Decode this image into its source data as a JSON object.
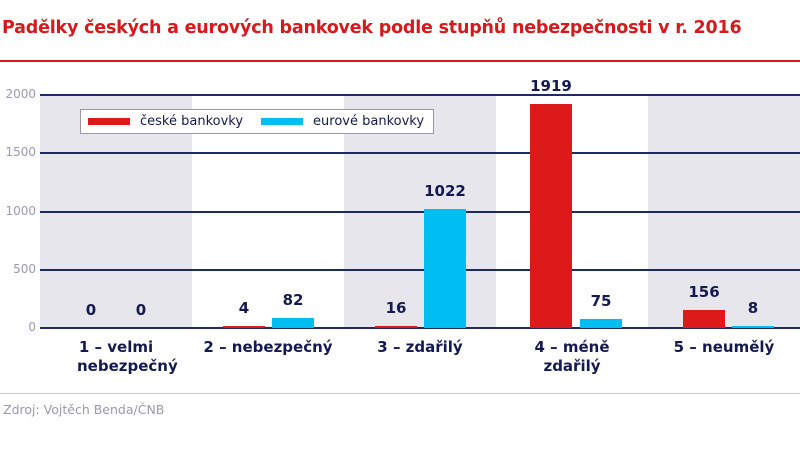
{
  "title": "Padělky českých a eurových bankovek podle stupňů nebezpečnosti v r. 2016",
  "legend": {
    "cz_label": "české bankovky",
    "eu_label": "eurové bankovky"
  },
  "colors": {
    "cz": "#dd1a1a",
    "eu": "#00bdf2",
    "title": "#d7191c",
    "text": "#141a4f"
  },
  "yaxis": {
    "ticks": [
      "2000",
      "1500",
      "1000",
      "500",
      "0"
    ]
  },
  "categories": [
    {
      "label": "1 – velmi nebezpečný",
      "cz": "0",
      "eu": "0"
    },
    {
      "label": "2 – nebezpečný",
      "cz": "4",
      "eu": "82"
    },
    {
      "label": "3 – zdařilý",
      "cz": "16",
      "eu": "1022"
    },
    {
      "label": "4 – méně zdařilý",
      "cz": "1919",
      "eu": "75"
    },
    {
      "label": "5 – neumělý",
      "cz": "156",
      "eu": "8"
    }
  ],
  "source": "Zdroj: Vojtěch Benda/ČNB",
  "chart_data": {
    "type": "bar",
    "title": "Padělky českých a eurových bankovek podle stupňů nebezpečnosti v r. 2016",
    "categories": [
      "1 – velmi nebezpečný",
      "2 – nebezpečný",
      "3 – zdařilý",
      "4 – méně zdařilý",
      "5 – neumělý"
    ],
    "series": [
      {
        "name": "české bankovky",
        "values": [
          0,
          4,
          16,
          1919,
          156
        ]
      },
      {
        "name": "eurové bankovky",
        "values": [
          0,
          82,
          1022,
          75,
          8
        ]
      }
    ],
    "xlabel": "",
    "ylabel": "",
    "ylim": [
      0,
      2000
    ],
    "yticks": [
      0,
      500,
      1000,
      1500,
      2000
    ],
    "grid": true,
    "legend_position": "top-left inside",
    "data_labels": true
  }
}
